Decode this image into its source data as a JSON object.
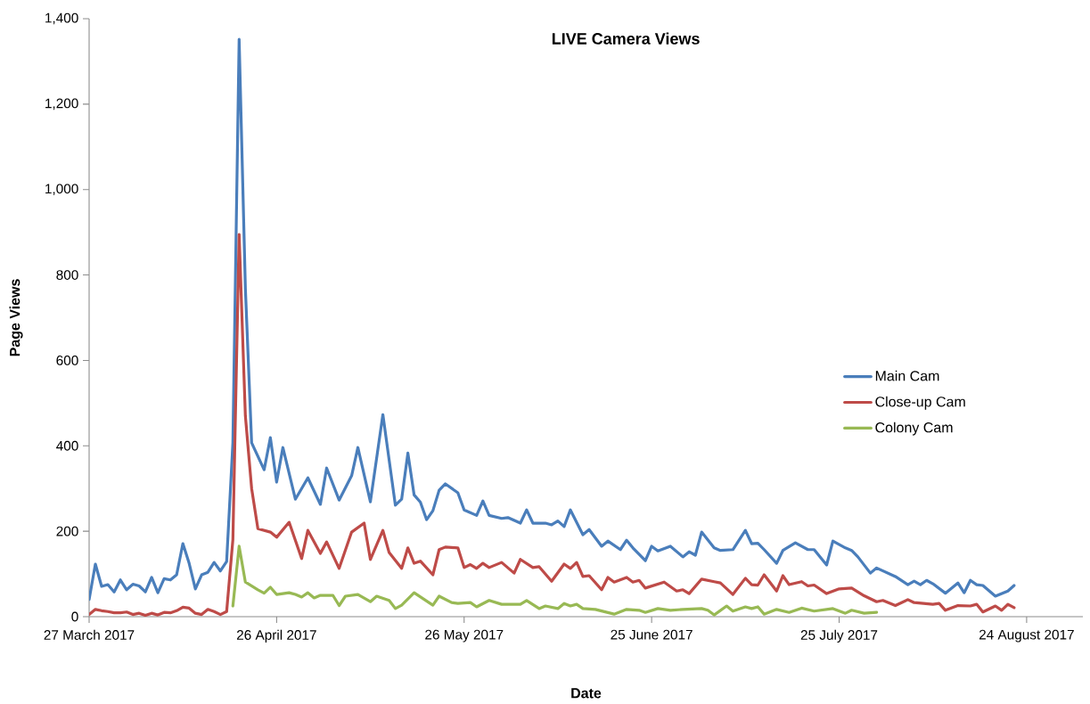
{
  "chart_data": {
    "type": "line",
    "title": "LIVE Camera Views",
    "xlabel": "Date",
    "ylabel": "Page Views",
    "xlim": [
      "2017-03-27",
      "2017-09-02"
    ],
    "xticks": [
      {
        "value": "2017-03-27",
        "label": "27 March 2017"
      },
      {
        "value": "2017-04-26",
        "label": "26 April 2017"
      },
      {
        "value": "2017-05-26",
        "label": "26 May 2017"
      },
      {
        "value": "2017-06-25",
        "label": "25 June 2017"
      },
      {
        "value": "2017-07-25",
        "label": "25 July 2017"
      },
      {
        "value": "2017-08-24",
        "label": "24 August 2017"
      }
    ],
    "ylim": [
      0,
      1400
    ],
    "yticks": [
      0,
      200,
      400,
      600,
      800,
      {
        "value": 1000,
        "label": "1,000"
      },
      {
        "value": 1200,
        "label": "1,200"
      },
      {
        "value": 1400,
        "label": "1,400"
      }
    ],
    "legend": "right",
    "series": [
      {
        "name": "Main Cam",
        "color": "#4a7ebb",
        "x": [
          "2017-03-27",
          "2017-03-28",
          "2017-03-29",
          "2017-03-30",
          "2017-03-31",
          "2017-04-01",
          "2017-04-02",
          "2017-04-03",
          "2017-04-04",
          "2017-04-05",
          "2017-04-06",
          "2017-04-07",
          "2017-04-08",
          "2017-04-09",
          "2017-04-10",
          "2017-04-11",
          "2017-04-12",
          "2017-04-13",
          "2017-04-14",
          "2017-04-15",
          "2017-04-16",
          "2017-04-17",
          "2017-04-18",
          "2017-04-19",
          "2017-04-20",
          "2017-04-21",
          "2017-04-22",
          "2017-04-24",
          "2017-04-25",
          "2017-04-26",
          "2017-04-27",
          "2017-04-29",
          "2017-05-01",
          "2017-05-03",
          "2017-05-04",
          "2017-05-06",
          "2017-05-08",
          "2017-05-09",
          "2017-05-11",
          "2017-05-13",
          "2017-05-15",
          "2017-05-16",
          "2017-05-17",
          "2017-05-18",
          "2017-05-19",
          "2017-05-20",
          "2017-05-21",
          "2017-05-22",
          "2017-05-23",
          "2017-05-25",
          "2017-05-26",
          "2017-05-28",
          "2017-05-29",
          "2017-05-30",
          "2017-06-01",
          "2017-06-02",
          "2017-06-04",
          "2017-06-05",
          "2017-06-06",
          "2017-06-08",
          "2017-06-09",
          "2017-06-10",
          "2017-06-11",
          "2017-06-12",
          "2017-06-14",
          "2017-06-15",
          "2017-06-17",
          "2017-06-18",
          "2017-06-20",
          "2017-06-21",
          "2017-06-22",
          "2017-06-24",
          "2017-06-25",
          "2017-06-26",
          "2017-06-28",
          "2017-06-30",
          "2017-07-01",
          "2017-07-02",
          "2017-07-03",
          "2017-07-05",
          "2017-07-06",
          "2017-07-08",
          "2017-07-10",
          "2017-07-11",
          "2017-07-12",
          "2017-07-13",
          "2017-07-15",
          "2017-07-16",
          "2017-07-18",
          "2017-07-20",
          "2017-07-21",
          "2017-07-23",
          "2017-07-24",
          "2017-07-26",
          "2017-07-27",
          "2017-07-28",
          "2017-07-30",
          "2017-07-31",
          "2017-08-03",
          "2017-08-05",
          "2017-08-06",
          "2017-08-07",
          "2017-08-08",
          "2017-08-09",
          "2017-08-11",
          "2017-08-13",
          "2017-08-14",
          "2017-08-15",
          "2017-08-16",
          "2017-08-17",
          "2017-08-19",
          "2017-08-21",
          "2017-08-22"
        ],
        "values": [
          40,
          123,
          71,
          75,
          58,
          86,
          63,
          76,
          72,
          58,
          92,
          56,
          89,
          86,
          98,
          171,
          125,
          65,
          98,
          104,
          127,
          107,
          129,
          407,
          1352,
          768,
          407,
          344,
          419,
          315,
          396,
          275,
          325,
          263,
          348,
          273,
          330,
          396,
          269,
          473,
          261,
          275,
          383,
          285,
          268,
          227,
          248,
          296,
          311,
          290,
          250,
          237,
          271,
          237,
          230,
          232,
          219,
          250,
          219,
          219,
          215,
          224,
          211,
          250,
          192,
          204,
          165,
          177,
          157,
          179,
          161,
          131,
          165,
          154,
          165,
          140,
          152,
          144,
          198,
          161,
          155,
          157,
          202,
          171,
          172,
          157,
          125,
          155,
          173,
          157,
          157,
          121,
          177,
          161,
          155,
          140,
          102,
          114,
          94,
          75,
          83,
          75,
          85,
          77,
          55,
          79,
          56,
          85,
          75,
          73,
          48,
          60,
          73
        ]
      },
      {
        "name": "Close-up Cam",
        "color": "#be4b48",
        "x": [
          "2017-03-27",
          "2017-03-28",
          "2017-03-29",
          "2017-03-30",
          "2017-03-31",
          "2017-04-01",
          "2017-04-02",
          "2017-04-03",
          "2017-04-04",
          "2017-04-05",
          "2017-04-06",
          "2017-04-07",
          "2017-04-08",
          "2017-04-09",
          "2017-04-10",
          "2017-04-11",
          "2017-04-12",
          "2017-04-13",
          "2017-04-14",
          "2017-04-15",
          "2017-04-16",
          "2017-04-17",
          "2017-04-18",
          "2017-04-19",
          "2017-04-20",
          "2017-04-21",
          "2017-04-22",
          "2017-04-23",
          "2017-04-25",
          "2017-04-26",
          "2017-04-28",
          "2017-04-30",
          "2017-05-01",
          "2017-05-03",
          "2017-05-04",
          "2017-05-06",
          "2017-05-08",
          "2017-05-10",
          "2017-05-11",
          "2017-05-13",
          "2017-05-14",
          "2017-05-16",
          "2017-05-17",
          "2017-05-18",
          "2017-05-19",
          "2017-05-21",
          "2017-05-22",
          "2017-05-23",
          "2017-05-25",
          "2017-05-26",
          "2017-05-27",
          "2017-05-28",
          "2017-05-29",
          "2017-05-30",
          "2017-06-01",
          "2017-06-03",
          "2017-06-04",
          "2017-06-06",
          "2017-06-07",
          "2017-06-09",
          "2017-06-11",
          "2017-06-12",
          "2017-06-13",
          "2017-06-14",
          "2017-06-15",
          "2017-06-17",
          "2017-06-18",
          "2017-06-19",
          "2017-06-21",
          "2017-06-22",
          "2017-06-23",
          "2017-06-24",
          "2017-06-27",
          "2017-06-29",
          "2017-06-30",
          "2017-07-01",
          "2017-07-03",
          "2017-07-05",
          "2017-07-06",
          "2017-07-08",
          "2017-07-10",
          "2017-07-11",
          "2017-07-12",
          "2017-07-13",
          "2017-07-15",
          "2017-07-16",
          "2017-07-17",
          "2017-07-19",
          "2017-07-20",
          "2017-07-21",
          "2017-07-23",
          "2017-07-25",
          "2017-07-27",
          "2017-07-29",
          "2017-07-31",
          "2017-08-01",
          "2017-08-03",
          "2017-08-05",
          "2017-08-06",
          "2017-08-09",
          "2017-08-10",
          "2017-08-11",
          "2017-08-13",
          "2017-08-15",
          "2017-08-16",
          "2017-08-17",
          "2017-08-19",
          "2017-08-20",
          "2017-08-21",
          "2017-08-22"
        ],
        "values": [
          5,
          17,
          14,
          12,
          9,
          9,
          11,
          5,
          8,
          3,
          8,
          4,
          10,
          9,
          14,
          22,
          20,
          8,
          5,
          17,
          12,
          5,
          12,
          180,
          895,
          470,
          300,
          206,
          198,
          186,
          221,
          136,
          202,
          148,
          175,
          113,
          198,
          219,
          134,
          202,
          150,
          113,
          161,
          125,
          130,
          98,
          157,
          163,
          161,
          115,
          122,
          113,
          125,
          115,
          127,
          102,
          134,
          115,
          117,
          83,
          123,
          113,
          127,
          94,
          96,
          63,
          92,
          81,
          92,
          81,
          85,
          67,
          81,
          60,
          63,
          54,
          88,
          82,
          79,
          52,
          90,
          75,
          74,
          98,
          60,
          96,
          75,
          82,
          72,
          74,
          54,
          65,
          67,
          49,
          35,
          38,
          26,
          40,
          33,
          29,
          31,
          15,
          26,
          25,
          29,
          11,
          25,
          15,
          29,
          21
        ]
      },
      {
        "name": "Colony Cam",
        "color": "#98b954",
        "x": [
          "2017-04-19",
          "2017-04-20",
          "2017-04-21",
          "2017-04-23",
          "2017-04-24",
          "2017-04-25",
          "2017-04-26",
          "2017-04-28",
          "2017-04-29",
          "2017-04-30",
          "2017-05-01",
          "2017-05-02",
          "2017-05-03",
          "2017-05-05",
          "2017-05-06",
          "2017-05-07",
          "2017-05-09",
          "2017-05-11",
          "2017-05-12",
          "2017-05-14",
          "2017-05-15",
          "2017-05-16",
          "2017-05-18",
          "2017-05-21",
          "2017-05-22",
          "2017-05-24",
          "2017-05-25",
          "2017-05-27",
          "2017-05-28",
          "2017-05-30",
          "2017-06-01",
          "2017-06-04",
          "2017-06-05",
          "2017-06-07",
          "2017-06-08",
          "2017-06-10",
          "2017-06-11",
          "2017-06-12",
          "2017-06-13",
          "2017-06-14",
          "2017-06-16",
          "2017-06-19",
          "2017-06-21",
          "2017-06-23",
          "2017-06-24",
          "2017-06-26",
          "2017-06-28",
          "2017-06-30",
          "2017-07-03",
          "2017-07-04",
          "2017-07-05",
          "2017-07-07",
          "2017-07-08",
          "2017-07-10",
          "2017-07-11",
          "2017-07-12",
          "2017-07-13",
          "2017-07-15",
          "2017-07-17",
          "2017-07-19",
          "2017-07-21",
          "2017-07-24",
          "2017-07-26",
          "2017-07-27",
          "2017-07-29",
          "2017-07-31"
        ],
        "values": [
          25,
          165,
          81,
          63,
          55,
          69,
          52,
          56,
          52,
          46,
          56,
          44,
          50,
          50,
          26,
          48,
          52,
          35,
          48,
          38,
          19,
          27,
          56,
          27,
          48,
          33,
          31,
          33,
          23,
          38,
          29,
          29,
          38,
          19,
          25,
          19,
          31,
          25,
          29,
          19,
          17,
          6,
          17,
          15,
          10,
          19,
          15,
          17,
          19,
          15,
          4,
          25,
          13,
          23,
          19,
          23,
          6,
          17,
          10,
          20,
          13,
          19,
          8,
          15,
          8,
          10
        ]
      }
    ]
  }
}
